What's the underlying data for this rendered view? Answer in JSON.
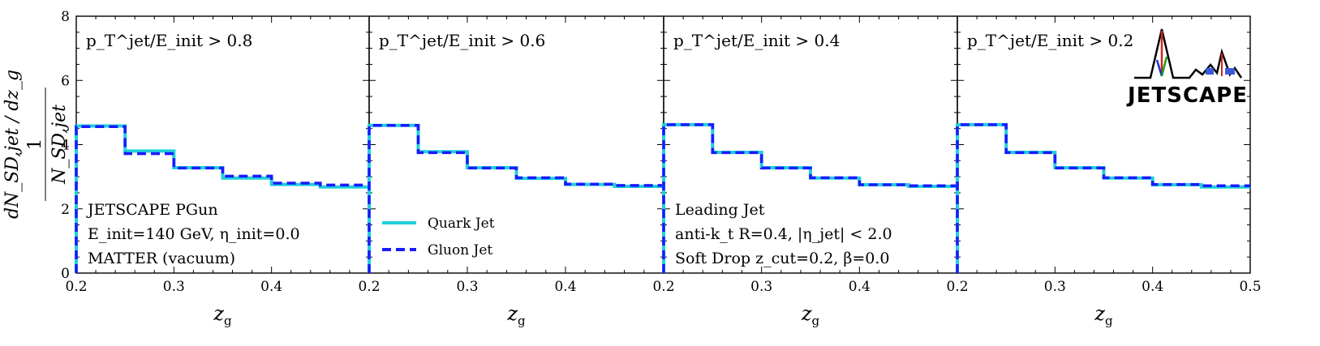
{
  "chart_data": {
    "type": "step",
    "x_range": [
      0.2,
      0.5
    ],
    "ylim": [
      0,
      8
    ],
    "y_ticks": [
      "0",
      "2",
      "4",
      "6",
      "8"
    ],
    "x_ticks": [
      "0.2",
      "0.3",
      "0.4",
      "0.5"
    ],
    "x_tick_values": [
      0.2,
      0.3,
      0.4,
      0.5
    ],
    "y_tick_values": [
      0,
      2,
      4,
      6,
      8
    ],
    "xlabel": "z_g",
    "ylabel": {
      "prefix": "1",
      "denominator": "N_SD,jet",
      "derivative": "dN_SD,jet / dz_g"
    },
    "bin_edges": [
      0.2,
      0.25,
      0.3,
      0.35,
      0.4,
      0.45,
      0.5
    ],
    "panels": [
      {
        "cut_label": "p_T^jet/E_init > 0.8",
        "series": [
          {
            "name": "Quark Jet",
            "color": "#1fd0d8",
            "values": [
              4.58,
              3.8,
              3.28,
              2.96,
              2.76,
              2.68
            ]
          },
          {
            "name": "Gluon Jet",
            "color": "#1a1aff",
            "values": [
              4.56,
              3.72,
              3.27,
              3.02,
              2.8,
              2.74
            ]
          }
        ],
        "annotations": [
          "JETSCAPE PGun",
          "E_init=140 GeV, η_init=0.0",
          "MATTER (vacuum)"
        ]
      },
      {
        "cut_label": "p_T^jet/E_init > 0.6",
        "series": [
          {
            "name": "Quark Jet",
            "color": "#1fd0d8",
            "values": [
              4.6,
              3.78,
              3.28,
              2.95,
              2.76,
              2.7
            ]
          },
          {
            "name": "Gluon Jet",
            "color": "#1a1aff",
            "values": [
              4.6,
              3.75,
              3.27,
              2.97,
              2.77,
              2.73
            ]
          }
        ],
        "annotations": []
      },
      {
        "cut_label": "p_T^jet/E_init > 0.4",
        "series": [
          {
            "name": "Quark Jet",
            "color": "#1fd0d8",
            "values": [
              4.62,
              3.76,
              3.28,
              2.96,
              2.75,
              2.7
            ]
          },
          {
            "name": "Gluon Jet",
            "color": "#1a1aff",
            "values": [
              4.62,
              3.75,
              3.27,
              2.97,
              2.75,
              2.72
            ]
          }
        ],
        "annotations": [
          "Leading Jet",
          "anti-k_t R=0.4, |η_jet| < 2.0",
          "Soft Drop z_cut=0.2, β=0.0"
        ]
      },
      {
        "cut_label": "p_T^jet/E_init > 0.2",
        "series": [
          {
            "name": "Quark Jet",
            "color": "#1fd0d8",
            "values": [
              4.62,
              3.76,
              3.28,
              2.96,
              2.75,
              2.68
            ]
          },
          {
            "name": "Gluon Jet",
            "color": "#1a1aff",
            "values": [
              4.62,
              3.75,
              3.27,
              2.97,
              2.76,
              2.72
            ]
          }
        ],
        "annotations": []
      }
    ],
    "legend": {
      "panel": 2,
      "placement": "lower-left",
      "entries": [
        {
          "label": "Quark Jet",
          "color": "#1fd0d8",
          "style": "solid"
        },
        {
          "label": "Gluon Jet",
          "color": "#1a1aff",
          "style": "dashed"
        }
      ]
    }
  },
  "logo": {
    "text": "JETSCAPE"
  }
}
